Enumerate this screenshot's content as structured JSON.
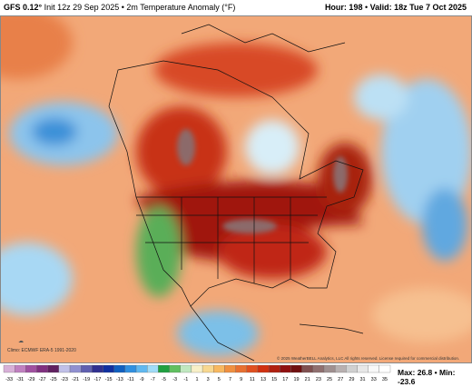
{
  "header": {
    "model": "GFS 0.12°",
    "init": "Init 12z 29 Sep 2025",
    "field": "2m Temperature Anomaly (°F)",
    "hour": "Hour: 198",
    "valid": "Valid: 18z Tue 7 Oct 2025"
  },
  "footer": {
    "climo": "Climo: ECMWF ERA-5 1991-2020",
    "copyright": "© 2025 WeatherBELL Analytics, LLC All rights reserved. License required for commercial distribution.",
    "max": "Max: 26.8",
    "min": "Min: -23.6"
  },
  "colorbar": {
    "labels": [
      -33,
      -31,
      -29,
      -27,
      -25,
      -23,
      -21,
      -19,
      -17,
      -15,
      -13,
      -11,
      -9,
      -7,
      -5,
      -3,
      -1,
      1,
      3,
      5,
      7,
      9,
      11,
      13,
      15,
      17,
      19,
      21,
      23,
      25,
      27,
      29,
      31,
      33,
      35
    ],
    "colors": [
      "#d8b0d8",
      "#c080c0",
      "#a050a0",
      "#803080",
      "#602060",
      "#c0c0e8",
      "#9090d0",
      "#6060b0",
      "#303090",
      "#1030a0",
      "#1060c0",
      "#3090e0",
      "#60b8f0",
      "#a0dcf8",
      "#20a040",
      "#60c060",
      "#c0e8c0",
      "#f8f0c8",
      "#f8d890",
      "#f8b860",
      "#f09040",
      "#e87030",
      "#e05020",
      "#d03010",
      "#b02010",
      "#901010",
      "#701010",
      "#805050",
      "#907070",
      "#a09090",
      "#b8b0b0",
      "#d0d0d0",
      "#e8e8e8",
      "#f8f8f8",
      "#ffffff"
    ]
  }
}
